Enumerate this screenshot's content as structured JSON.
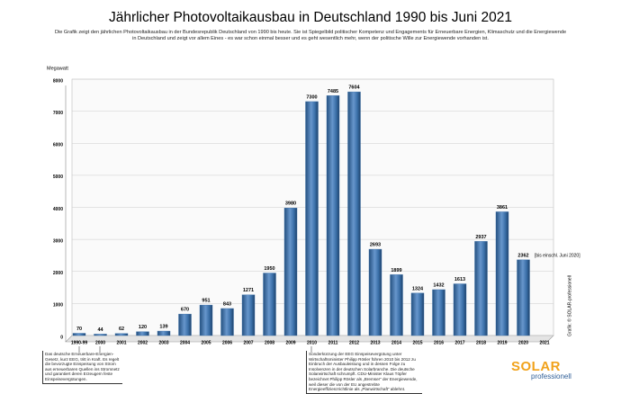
{
  "chart_data": {
    "type": "bar",
    "title": "Jährlicher Photovoltaikausbau in Deutschland 1990 bis Juni 2021",
    "subtitle": "Die Grafik zeigt den jährlichen Photovoltaikausbau in der Bundesrepublik Deutschland von 1990 bis heute. Sie ist Spiegelbild politischer Kompetenz und Engagements für Erneuerbare Energien, Klimaschutz und die Energiewende in Deutschland und zeigt vor allem Eines - es war schon einmal besser und es geht wesentlich mehr, wenn der politische Wille zur Energiewende vorhanden ist.",
    "y_label": "Megawatt",
    "categories": [
      "1990-99",
      "2000",
      "2001",
      "2002",
      "2003",
      "2004",
      "2005",
      "2006",
      "2007",
      "2008",
      "2009",
      "2010",
      "2011",
      "2012",
      "2013",
      "2014",
      "2015",
      "2016",
      "2017",
      "2018",
      "2019",
      "2020",
      "2021"
    ],
    "values": [
      70,
      44,
      62,
      120,
      139,
      670,
      951,
      843,
      1271,
      1950,
      3980,
      7300,
      7485,
      7604,
      2693,
      1899,
      1324,
      1432,
      1613,
      2937,
      3861,
      2362,
      null
    ],
    "color": "#3a6fa8",
    "ylim": [
      0,
      8000
    ],
    "yticks": [
      0,
      1000,
      2000,
      3000,
      4000,
      5000,
      6000,
      7000,
      8000
    ],
    "grid": true,
    "annotations": [
      "[bis einschl. Juni 2020]",
      "Grafik: © SOLAR-professionell",
      "Das deutsche Erneuerbare-Energien-Gesetz, kurz EEG, tritt in Kraft. Es regelt die bevorzugte Einspeisung von Strom aus erneuerbaren Quellen ins Stromnetz und garantiert deren Erzeugern feste Einspeisevergütungen.",
      "Sonderkürzung der EEG Einspeisevergütung unter Wirtschaftsminister Philipp Rösler führen 2010 bis 2012 zu Einbruch der Ausbauleistung und in dessen Folge zu Insolvenzen in der deutschen Solarbranche. Die deutsche Solarwirtschaft schrumpft. CDU-Minister Klaus Töpfer bezeichnet Philipp Rösler als „Bremser“ der Energiewende, weil dieser die von der EU angestrebte Energieeffizienzrichtlinie als „Planwirtschaft“ ablehnt."
    ]
  },
  "logo": {
    "name": "SOLAR",
    "sub": "professionell"
  }
}
